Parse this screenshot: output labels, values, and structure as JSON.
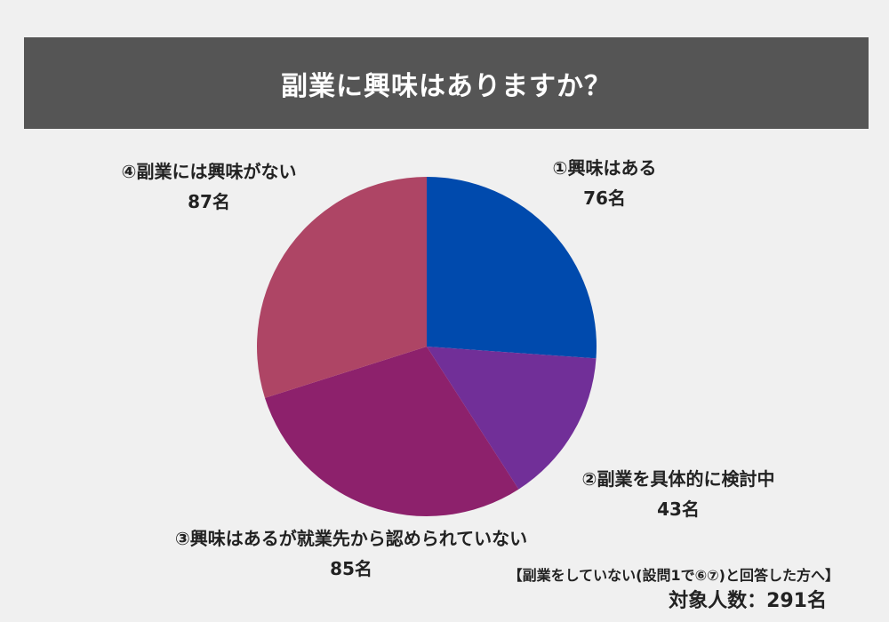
{
  "header": {
    "title": "副業に興味はありますか？"
  },
  "chart_data": {
    "type": "pie",
    "title": "副業に興味はありますか？",
    "slices": [
      {
        "label": "①興味はある",
        "value": 76,
        "value_label": "76名",
        "color": "#004aad"
      },
      {
        "label": "②副業を具体的に検討中",
        "value": 43,
        "value_label": "43名",
        "color": "#712f98"
      },
      {
        "label": "③興味はあるが就業先から認められていない",
        "value": 85,
        "value_label": "85名",
        "color": "#8d216c"
      },
      {
        "label": "④副業には興味がない",
        "value": 87,
        "value_label": "87名",
        "color": "#ae4565"
      }
    ]
  },
  "footnote": "【副業をしていない(設問1で⑥⑦)と回答した方へ】",
  "total": "対象人数：291名"
}
